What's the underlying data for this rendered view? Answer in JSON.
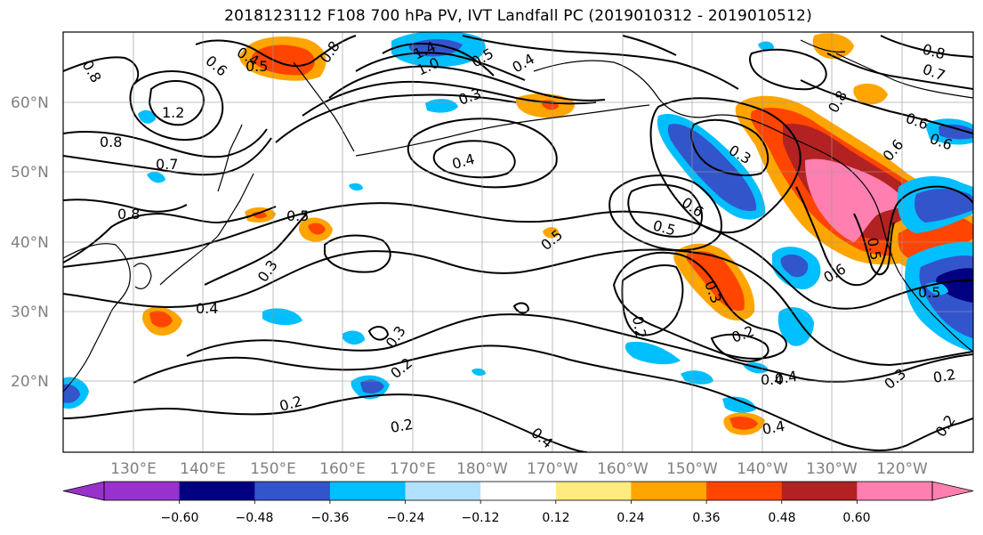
{
  "title": "2018123112 F108 700 hPa PV, IVT Landfall PC (2019010312 - 2019010512)",
  "lat_labels": [
    "60°N",
    "50°N",
    "40°N",
    "30°N",
    "20°N"
  ],
  "lon_labels": [
    "130°E",
    "140°E",
    "150°E",
    "160°E",
    "170°E",
    "180°W",
    "170°W",
    "160°W",
    "150°W",
    "140°W",
    "130°W",
    "120°W"
  ],
  "colorbar": {
    "colors": [
      "#9932cc",
      "#000080",
      "#3355cc",
      "#00bfff",
      "#b0e2ff",
      "#ffffff",
      "#ffeb80",
      "#ffa500",
      "#ff4500",
      "#b22222",
      "#ff80b0"
    ],
    "tick_labels": [
      "−0.60",
      "−0.48",
      "−0.36",
      "−0.24",
      "−0.12",
      "0.12",
      "0.24",
      "0.36",
      "0.48",
      "0.60"
    ]
  },
  "contour_labels": [
    "0.8",
    "0.5",
    "0.6",
    "0.4",
    "1.2",
    "1.4",
    "1.0",
    "0.8",
    "0.4",
    "0.3",
    "0.5",
    "0.4",
    "0.8",
    "0.7",
    "0.8",
    "0.5",
    "0.3",
    "0.4",
    "0.7",
    "0.6",
    "0.8",
    "0.6",
    "0.3",
    "0.6",
    "0.5",
    "0.5",
    "0.4",
    "0.3",
    "0.2",
    "0.2",
    "0.2",
    "0.4",
    "0.2",
    "0.3",
    "0.2",
    "0.4",
    "0.4",
    "0.6",
    "0.5",
    "0.3",
    "0.2",
    "0.5",
    "0.2",
    "0.8",
    "0.6"
  ]
}
